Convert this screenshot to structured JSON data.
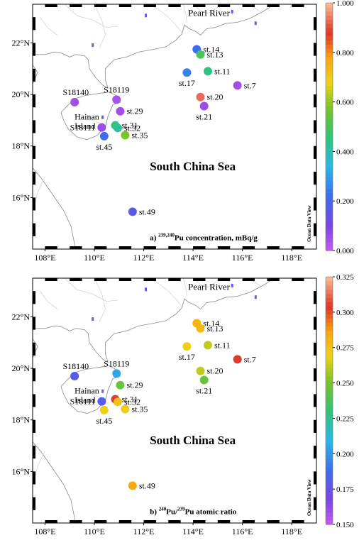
{
  "panels": [
    {
      "id": "a",
      "caption_prefix": "a)",
      "caption_sup": "239,240",
      "caption_text": "Pu concentration, mBq/g",
      "colorbar": {
        "min": 0.0,
        "max": 1.0,
        "tick_labels": [
          "1.000",
          "0.800",
          "0.600",
          "0.400",
          "0.200",
          "0.000"
        ],
        "tick_values": [
          1.0,
          0.8,
          0.6,
          0.4,
          0.2,
          0.0
        ]
      },
      "stations": [
        {
          "label": "st.14",
          "lon": 114.15,
          "lat": 21.75,
          "value": 0.22,
          "label_pos": "right"
        },
        {
          "label": "st.13",
          "lon": 114.3,
          "lat": 21.55,
          "value": 0.5,
          "label_pos": "right"
        },
        {
          "label": "st.11",
          "lon": 114.6,
          "lat": 20.9,
          "value": 0.45,
          "label_pos": "right"
        },
        {
          "label": "st.17",
          "lon": 113.75,
          "lat": 20.85,
          "value": 0.25,
          "label_pos": "below"
        },
        {
          "label": "st.20",
          "lon": 114.3,
          "lat": 19.9,
          "value": 0.93,
          "label_pos": "right"
        },
        {
          "label": "st.7",
          "lon": 115.8,
          "lat": 20.35,
          "value": 0.05,
          "label_pos": "right"
        },
        {
          "label": "st.21",
          "lon": 114.45,
          "lat": 19.55,
          "value": 0.06,
          "label_pos": "below"
        },
        {
          "label": "S18140",
          "lon": 109.2,
          "lat": 19.7,
          "value": 0.05,
          "label_pos": "above-left"
        },
        {
          "label": "S18119",
          "lon": 110.9,
          "lat": 19.8,
          "value": 0.04,
          "label_pos": "above"
        },
        {
          "label": "st.29",
          "lon": 111.05,
          "lat": 19.35,
          "value": 0.05,
          "label_pos": "right"
        },
        {
          "label": "st.31",
          "lon": 110.85,
          "lat": 18.8,
          "value": 0.45,
          "label_pos": "right"
        },
        {
          "label": "st.32",
          "lon": 110.95,
          "lat": 18.7,
          "value": 0.43,
          "label_pos": "right"
        },
        {
          "label": "S18111",
          "lon": 110.3,
          "lat": 18.72,
          "value": 0.06,
          "label_pos": "left"
        },
        {
          "label": "st.45",
          "lon": 110.4,
          "lat": 18.38,
          "value": 0.22,
          "label_pos": "below"
        },
        {
          "label": "st.35",
          "lon": 111.25,
          "lat": 18.42,
          "value": 0.58,
          "label_pos": "right"
        },
        {
          "label": "st.49",
          "lon": 111.55,
          "lat": 15.45,
          "value": 0.16,
          "label_pos": "right"
        }
      ]
    },
    {
      "id": "b",
      "caption_prefix": "b)",
      "caption_sup": "240",
      "caption_text": "Pu/",
      "caption_sup2": "239",
      "caption_text2": "Pu atomic ratio",
      "colorbar": {
        "min": 0.15,
        "max": 0.325,
        "tick_labels": [
          "0.325",
          "0.300",
          "0.275",
          "0.250",
          "0.225",
          "0.200",
          "0.175",
          "0.150"
        ],
        "tick_values": [
          0.325,
          0.3,
          0.275,
          0.25,
          0.225,
          0.2,
          0.175,
          0.15
        ]
      },
      "stations": [
        {
          "label": "st.14",
          "lon": 114.15,
          "lat": 21.75,
          "value": 0.28,
          "label_pos": "right"
        },
        {
          "label": "st.13",
          "lon": 114.3,
          "lat": 21.55,
          "value": 0.278,
          "label_pos": "right"
        },
        {
          "label": "st.11",
          "lon": 114.6,
          "lat": 20.9,
          "value": 0.262,
          "label_pos": "right"
        },
        {
          "label": "st.17",
          "lon": 113.75,
          "lat": 20.85,
          "value": 0.27,
          "label_pos": "below"
        },
        {
          "label": "st.20",
          "lon": 114.3,
          "lat": 19.9,
          "value": 0.262,
          "label_pos": "right"
        },
        {
          "label": "st.7",
          "lon": 115.8,
          "lat": 20.35,
          "value": 0.305,
          "label_pos": "right"
        },
        {
          "label": "st.21",
          "lon": 114.45,
          "lat": 19.55,
          "value": 0.245,
          "label_pos": "below"
        },
        {
          "label": "S18140",
          "lon": 109.2,
          "lat": 19.7,
          "value": 0.18,
          "label_pos": "above-left"
        },
        {
          "label": "S18119",
          "lon": 110.9,
          "lat": 19.8,
          "value": 0.205,
          "label_pos": "above"
        },
        {
          "label": "st.29",
          "lon": 111.05,
          "lat": 19.35,
          "value": 0.245,
          "label_pos": "right"
        },
        {
          "label": "st.31",
          "lon": 110.85,
          "lat": 18.8,
          "value": 0.305,
          "label_pos": "right"
        },
        {
          "label": "st.32",
          "lon": 110.95,
          "lat": 18.7,
          "value": 0.275,
          "label_pos": "right"
        },
        {
          "label": "S18111",
          "lon": 110.3,
          "lat": 18.72,
          "value": 0.18,
          "label_pos": "left"
        },
        {
          "label": "st.45",
          "lon": 110.4,
          "lat": 18.38,
          "value": 0.27,
          "label_pos": "below"
        },
        {
          "label": "st.35",
          "lon": 111.25,
          "lat": 18.42,
          "value": 0.268,
          "label_pos": "right"
        },
        {
          "label": "st.49",
          "lon": 111.55,
          "lat": 15.45,
          "value": 0.285,
          "label_pos": "right"
        }
      ]
    }
  ],
  "map": {
    "lon_range": [
      107.5,
      119.0
    ],
    "lat_range": [
      14.0,
      23.5
    ],
    "x_tick_labels": [
      "108°E",
      "110°E",
      "112°E",
      "114°E",
      "116°E",
      "118°E"
    ],
    "x_tick_values": [
      108,
      110,
      112,
      114,
      116,
      118
    ],
    "y_tick_labels": [
      "16°N",
      "18°N",
      "20°N",
      "22°N"
    ],
    "y_tick_values": [
      16,
      18,
      20,
      22
    ],
    "place_labels": {
      "pearl_river": "Pearl River",
      "hainan_line1": "Hainan",
      "hainan_line2": "Island",
      "sea": "South China Sea"
    },
    "watermark": "Ocean Data View"
  },
  "colors": {
    "land": "#ffffff",
    "sea": "#ffffff",
    "coast": "#8a8a8a",
    "border": "#000000"
  }
}
